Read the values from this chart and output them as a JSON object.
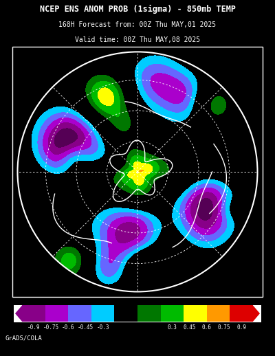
{
  "title_line1": "NCEP ENS ANOM PROB (1sigma) - 850mb TEMP",
  "title_line2": "168H Forecast from: 00Z Thu MAY,01 2025",
  "title_line3": "Valid time: 00Z Thu MAY,08 2025",
  "colorbar_values": [
    -0.9,
    -0.75,
    -0.6,
    -0.45,
    -0.3,
    0.3,
    0.45,
    0.6,
    0.75,
    0.9
  ],
  "colorbar_labels": [
    "-0.9",
    "-0.75",
    "-0.6",
    "-0.45",
    "-0.3",
    "0.3",
    "0.45",
    "0.6",
    "0.75",
    "0.9"
  ],
  "cb_neg_colors": [
    "#880088",
    "#aa00cc",
    "#6666ff",
    "#00ccff"
  ],
  "cb_mid_color": "#000000",
  "cb_pos_colors": [
    "#007700",
    "#00bb00",
    "#ffff00",
    "#ff9900",
    "#dd0000"
  ],
  "background_color": "#000000",
  "text_color": "#ffffff",
  "credit": "GrADS/COLA",
  "fig_width": 4.0,
  "fig_height": 5.18,
  "levels": [
    -1.05,
    -0.9,
    -0.75,
    -0.6,
    -0.45,
    -0.3,
    0.3,
    0.45,
    0.6,
    0.75,
    0.9,
    1.05
  ],
  "plot_colors": [
    "#550055",
    "#880088",
    "#aa00cc",
    "#6666ff",
    "#00ccff",
    "#000000",
    "#007700",
    "#00bb00",
    "#ffff00",
    "#ff9900",
    "#dd0000"
  ]
}
